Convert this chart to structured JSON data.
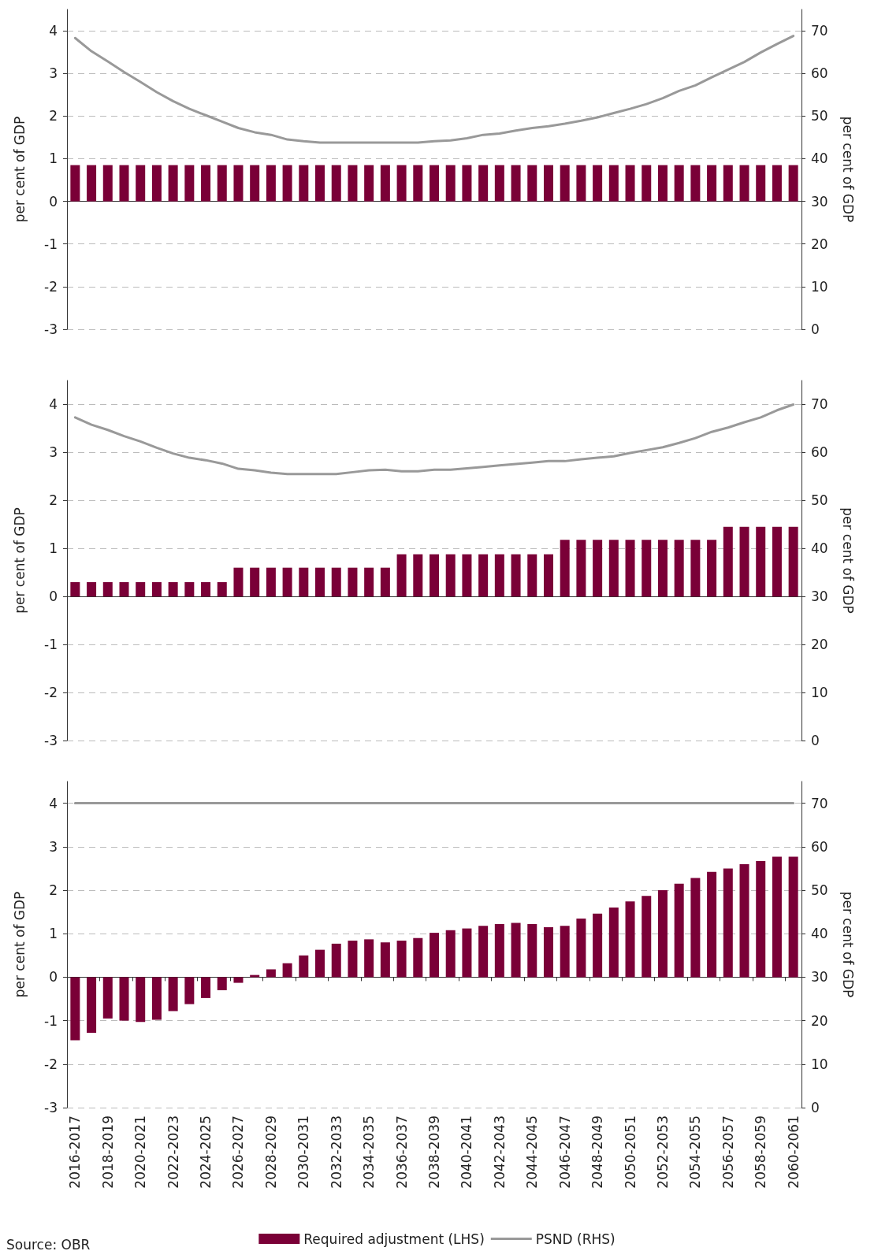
{
  "chart_data": [
    {
      "type": "bar",
      "categories": [
        null,
        null,
        null,
        null,
        null,
        null,
        null,
        null,
        null,
        null,
        null,
        null,
        null,
        null,
        null,
        null,
        null,
        null,
        null,
        null,
        null,
        null,
        null,
        null,
        null,
        null,
        null,
        null,
        null,
        null,
        null,
        null,
        null,
        null,
        null,
        null,
        null,
        null,
        null,
        null,
        null,
        null,
        null,
        null,
        null
      ],
      "ylabel": "per cent of GDP",
      "y2label": "per cent of GDP",
      "ylim": [
        -3,
        4.5
      ],
      "yticks": [
        -3,
        -2,
        -1,
        0,
        1,
        2,
        3,
        4
      ],
      "y2lim": [
        0,
        75
      ],
      "y2ticks": [
        0,
        10,
        20,
        30,
        40,
        50,
        60,
        70
      ],
      "grid": "y",
      "marker": "none",
      "series": [
        {
          "color": "#7a0037",
          "values": [
            0.85,
            0.85,
            0.85,
            0.85,
            0.85,
            0.85,
            0.85,
            0.85,
            0.85,
            0.85,
            0.85,
            0.85,
            0.85,
            0.85,
            0.85,
            0.85,
            0.85,
            0.85,
            0.85,
            0.85,
            0.85,
            0.85,
            0.85,
            0.85,
            0.85,
            0.85,
            0.85,
            0.85,
            0.85,
            0.85,
            0.85,
            0.85,
            0.85,
            0.85,
            0.85,
            0.85,
            0.85,
            0.85,
            0.85,
            0.85,
            0.85,
            0.85,
            0.85,
            0.85,
            0.85
          ]
        },
        {
          "type": "line",
          "axis": "y2",
          "color": "#999999",
          "values": [
            68.3,
            65.2,
            62.8,
            60.3,
            58,
            55.6,
            53.5,
            51.7,
            50.2,
            48.7,
            47.2,
            46.2,
            45.6,
            44.5,
            44.1,
            43.8,
            43.8,
            43.8,
            43.8,
            43.8,
            43.8,
            43.8,
            44.1,
            44.3,
            44.8,
            45.6,
            45.9,
            46.6,
            47.2,
            47.6,
            48.2,
            48.9,
            49.7,
            50.7,
            51.7,
            52.8,
            54.2,
            55.9,
            57.2,
            59.1,
            60.9,
            62.7,
            64.9,
            66.9,
            68.8
          ]
        }
      ]
    },
    {
      "type": "bar",
      "categories": [
        null,
        null,
        null,
        null,
        null,
        null,
        null,
        null,
        null,
        null,
        null,
        null,
        null,
        null,
        null,
        null,
        null,
        null,
        null,
        null,
        null,
        null,
        null,
        null,
        null,
        null,
        null,
        null,
        null,
        null,
        null,
        null,
        null,
        null,
        null,
        null,
        null,
        null,
        null,
        null,
        null,
        null,
        null,
        null,
        null
      ],
      "ylabel": "per cent of GDP",
      "y2label": "per cent of GDP",
      "ylim": [
        -3,
        4.5
      ],
      "yticks": [
        -3,
        -2,
        -1,
        0,
        1,
        2,
        3,
        4
      ],
      "y2lim": [
        0,
        75
      ],
      "y2ticks": [
        0,
        10,
        20,
        30,
        40,
        50,
        60,
        70
      ],
      "grid": "y",
      "marker": "none",
      "series": [
        {
          "color": "#7a0037",
          "values": [
            0.3,
            0.3,
            0.3,
            0.3,
            0.3,
            0.3,
            0.3,
            0.3,
            0.3,
            0.3,
            0.6,
            0.6,
            0.6,
            0.6,
            0.6,
            0.6,
            0.6,
            0.6,
            0.6,
            0.6,
            0.88,
            0.88,
            0.88,
            0.88,
            0.88,
            0.88,
            0.88,
            0.88,
            0.88,
            0.88,
            1.18,
            1.18,
            1.18,
            1.18,
            1.18,
            1.18,
            1.18,
            1.18,
            1.18,
            1.18,
            1.45,
            1.45,
            1.45,
            1.45,
            1.45
          ]
        },
        {
          "type": "line",
          "axis": "y2",
          "color": "#999999",
          "values": [
            67.3,
            65.8,
            64.7,
            63.4,
            62.3,
            61,
            59.8,
            58.9,
            58.4,
            57.7,
            56.6,
            56.3,
            55.8,
            55.5,
            55.5,
            55.5,
            55.5,
            55.9,
            56.3,
            56.4,
            56.1,
            56.1,
            56.4,
            56.4,
            56.7,
            57,
            57.3,
            57.6,
            57.9,
            58.2,
            58.2,
            58.6,
            58.9,
            59.2,
            59.9,
            60.5,
            61.1,
            62,
            63,
            64.3,
            65.2,
            66.3,
            67.3,
            68.8,
            70
          ]
        }
      ]
    },
    {
      "type": "bar",
      "categories": [
        "2016-2017",
        null,
        "2018-2019",
        null,
        "2020-2021",
        null,
        "2022-2023",
        null,
        "2024-2025",
        null,
        "2026-2027",
        null,
        "2028-2029",
        null,
        "2030-2031",
        null,
        "2032-2033",
        null,
        "2034-2035",
        null,
        "2036-2037",
        null,
        "2038-2039",
        null,
        "2040-2041",
        null,
        "2042-2043",
        null,
        "2044-2045",
        null,
        "2046-2047",
        null,
        "2048-2049",
        null,
        "2050-2051",
        null,
        "2052-2053",
        null,
        "2054-2055",
        null,
        "2056-2057",
        null,
        "2058-2059",
        null,
        "2060-2061"
      ],
      "ylabel": "per cent of GDP",
      "y2label": "per cent of GDP",
      "ylim": [
        -3,
        4.5
      ],
      "yticks": [
        -3,
        -2,
        -1,
        0,
        1,
        2,
        3,
        4
      ],
      "y2lim": [
        0,
        75
      ],
      "y2ticks": [
        0,
        10,
        20,
        30,
        40,
        50,
        60,
        70
      ],
      "grid": "y",
      "marker": "none",
      "legend": "bottom",
      "annotations": [
        "Source: OBR"
      ],
      "series": [
        {
          "name": "Required adjustment (LHS)",
          "color": "#7a0037",
          "values": [
            -1.45,
            -1.28,
            -0.95,
            -1.0,
            -1.03,
            -0.98,
            -0.78,
            -0.62,
            -0.48,
            -0.3,
            -0.13,
            0.05,
            0.18,
            0.32,
            0.5,
            0.63,
            0.77,
            0.84,
            0.87,
            0.8,
            0.84,
            0.9,
            1.02,
            1.08,
            1.12,
            1.18,
            1.22,
            1.25,
            1.22,
            1.15,
            1.18,
            1.35,
            1.46,
            1.6,
            1.74,
            1.87,
            2.0,
            2.15,
            2.28,
            2.42,
            2.5,
            2.6,
            2.67,
            2.77,
            2.77
          ]
        },
        {
          "type": "line",
          "name": "PSND (RHS)",
          "axis": "y2",
          "color": "#999999",
          "values": [
            70,
            70,
            70,
            70,
            70,
            70,
            70,
            70,
            70,
            70,
            70,
            70,
            70,
            70,
            70,
            70,
            70,
            70,
            70,
            70,
            70,
            70,
            70,
            70,
            70,
            70,
            70,
            70,
            70,
            70,
            70,
            70,
            70,
            70,
            70,
            70,
            70,
            70,
            70,
            70,
            70,
            70,
            70,
            70,
            70
          ]
        }
      ]
    }
  ]
}
